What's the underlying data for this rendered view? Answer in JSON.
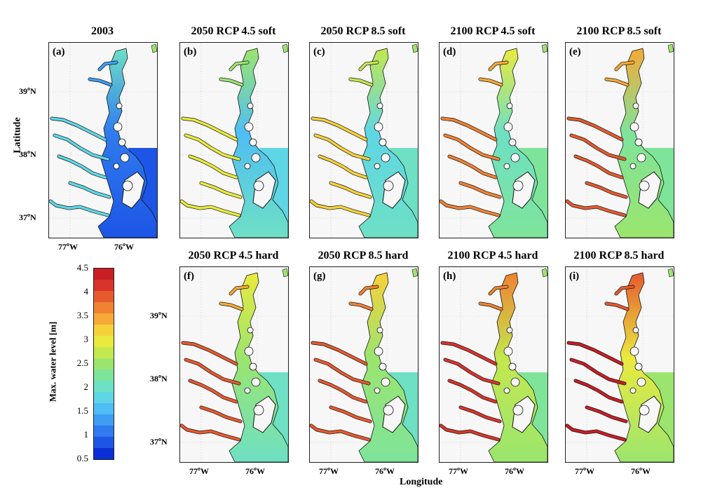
{
  "panels": [
    {
      "id": "a",
      "label": "(a)",
      "title": "2003",
      "mode": "base"
    },
    {
      "id": "b",
      "label": "(b)",
      "title": "2050 RCP 4.5 soft",
      "mode": "s1"
    },
    {
      "id": "c",
      "label": "(c)",
      "title": "2050 RCP 8.5 soft",
      "mode": "s2"
    },
    {
      "id": "d",
      "label": "(d)",
      "title": "2100 RCP 4.5 soft",
      "mode": "s3"
    },
    {
      "id": "e",
      "label": "(e)",
      "title": "2100 RCP 8.5 soft",
      "mode": "s4"
    },
    {
      "id": "f",
      "label": "(f)",
      "title": "2050 RCP 4.5 hard",
      "mode": "h1"
    },
    {
      "id": "g",
      "label": "(g)",
      "title": "2050 RCP 8.5 hard",
      "mode": "h2"
    },
    {
      "id": "h",
      "label": "(h)",
      "title": "2100 RCP 4.5 hard",
      "mode": "h3"
    },
    {
      "id": "i",
      "label": "(i)",
      "title": "2100 RCP 8.5 hard",
      "mode": "h4"
    }
  ],
  "axes": {
    "ylabel": "Latitude",
    "xlabel": "Longitude",
    "lat_ticks": [
      {
        "deg": "39",
        "hemi": "N"
      },
      {
        "deg": "38",
        "hemi": "N"
      },
      {
        "deg": "37",
        "hemi": "N"
      }
    ],
    "lon_ticks": [
      {
        "deg": "77",
        "hemi": "W"
      },
      {
        "deg": "76",
        "hemi": "W"
      }
    ],
    "degree_symbol": "o"
  },
  "colorbar": {
    "label": "Max. water level [m]",
    "min": 0.5,
    "max": 4.5,
    "ticks": [
      "4.5",
      "4",
      "3.5",
      "3",
      "2.5",
      "2",
      "1.5",
      "1",
      "0.5"
    ],
    "colors": [
      "#0a2fd6",
      "#1d55e6",
      "#2f7bef",
      "#3f9ef4",
      "#4fbef4",
      "#5fd6e6",
      "#6ee0c4",
      "#7ee49a",
      "#9be56e",
      "#c3e84e",
      "#eaea3e",
      "#f7d13a",
      "#f6a936",
      "#f08232",
      "#e65a2e",
      "#d9342b",
      "#c81e24"
    ]
  }
}
